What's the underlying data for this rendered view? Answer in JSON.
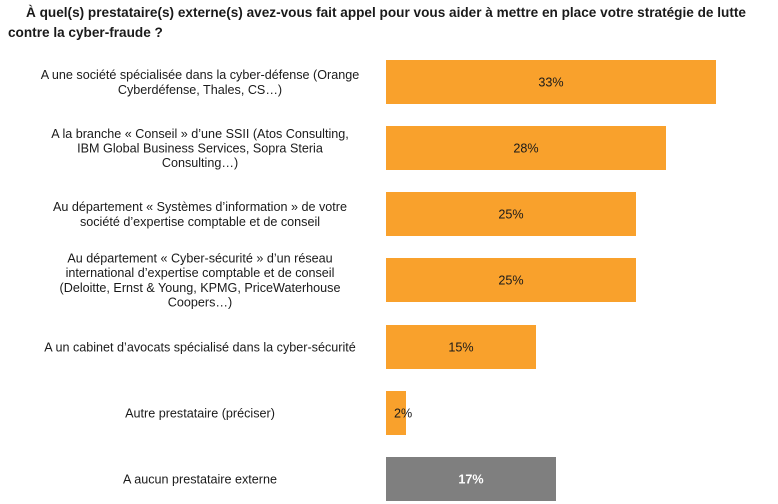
{
  "chart_data": {
    "type": "bar",
    "orientation": "horizontal",
    "title": "À quel(s) prestataire(s) externe(s) avez-vous fait appel pour vous aider à mettre en place votre stratégie de lutte contre la cyber-fraude ?",
    "unit": "%",
    "xlim": [
      0,
      38
    ],
    "grid": false,
    "categories": [
      [
        "A une société spécialisée dans la cyber-défense (Orange",
        "Cyberdéfense, Thales, CS…)"
      ],
      [
        "A la branche « Conseil » d’une SSII (Atos Consulting,",
        "IBM Global Business Services, Sopra Steria",
        "Consulting…)"
      ],
      [
        "Au département « Systèmes d’information » de votre",
        "société d’expertise comptable et de conseil"
      ],
      [
        "Au département « Cyber-sécurité » d’un réseau",
        "international d’expertise comptable et de conseil",
        "(Deloitte, Ernst & Young, KPMG, PriceWaterhouse",
        "Coopers…)"
      ],
      [
        "A un cabinet d’avocats spécialisé dans la cyber-sécurité"
      ],
      [
        "Autre prestataire (préciser)"
      ],
      [
        "A aucun prestataire externe"
      ]
    ],
    "values": [
      33,
      28,
      25,
      25,
      15,
      2,
      17
    ],
    "value_labels": [
      "33%",
      "28%",
      "25%",
      "25%",
      "15%",
      "2%",
      "17%"
    ],
    "bar_colors": [
      "#f9a12c",
      "#f9a12c",
      "#f9a12c",
      "#f9a12c",
      "#f9a12c",
      "#f9a12c",
      "#7f7f7f"
    ]
  }
}
